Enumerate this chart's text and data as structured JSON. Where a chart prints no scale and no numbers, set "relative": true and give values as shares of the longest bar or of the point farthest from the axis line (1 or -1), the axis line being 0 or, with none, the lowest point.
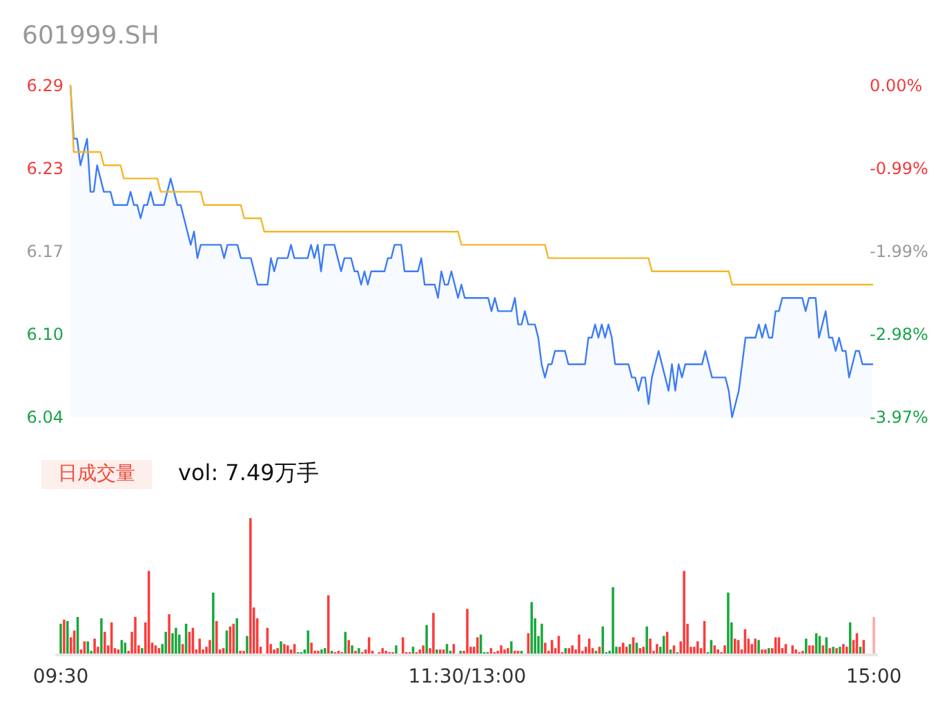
{
  "chart_data": [
    {
      "type": "area",
      "title": "601999.SH",
      "ylim": [
        6.04,
        6.29
      ],
      "yticks": [
        {
          "value": 6.04,
          "label": "6.04"
        },
        {
          "value": 6.1025,
          "label": "6.10"
        },
        {
          "value": 6.165,
          "label": "6.17"
        },
        {
          "value": 6.2275,
          "label": "6.23"
        },
        {
          "value": 6.29,
          "label": "6.29"
        }
      ],
      "y2lim": [
        -3.97,
        0
      ],
      "y2ticks": [
        {
          "value": -3.97,
          "label": "-3.97%"
        },
        {
          "value": -2.9775,
          "label": "-2.98%"
        },
        {
          "value": -1.985,
          "label": "-1.99%"
        },
        {
          "value": -0.9925,
          "label": "-0.99%"
        },
        {
          "value": 0,
          "label": "0.00%"
        }
      ],
      "tick_labels": "y",
      "categories": [
        null,
        null,
        null,
        null,
        null,
        null,
        null,
        null,
        null,
        null,
        null,
        null,
        null,
        null,
        null,
        null,
        null,
        null,
        null,
        null,
        null,
        null,
        null,
        null,
        null,
        null,
        null,
        null,
        null,
        null,
        null,
        null,
        null,
        null,
        null,
        null,
        null,
        null,
        null,
        null,
        null,
        null,
        null,
        null,
        null,
        null,
        null,
        null,
        null,
        null,
        null,
        null,
        null,
        null,
        null,
        null,
        null,
        null,
        null,
        null,
        null,
        null,
        null,
        null,
        null,
        null,
        null,
        null,
        null,
        null,
        null,
        null,
        null,
        null,
        null,
        null,
        null,
        null,
        null,
        null,
        null,
        null,
        null,
        null,
        null,
        null,
        null,
        null,
        null,
        null,
        null,
        null,
        null,
        null,
        null,
        null,
        null,
        null,
        null,
        null,
        null,
        null,
        null,
        null,
        null,
        null,
        null,
        null,
        null,
        null,
        null,
        null,
        null,
        null,
        null,
        null,
        null,
        null,
        null,
        null,
        null,
        null,
        null,
        null,
        null,
        null,
        null,
        null,
        null,
        null,
        null,
        null,
        null,
        null,
        null,
        null,
        null,
        null,
        null,
        null,
        null,
        null,
        null,
        null,
        null,
        null,
        null,
        null,
        null,
        null,
        null,
        null,
        null,
        null,
        null,
        null,
        null,
        null,
        null,
        null,
        null,
        null,
        null,
        null,
        null,
        null,
        null,
        null,
        null,
        null,
        null,
        null,
        null,
        null,
        null,
        null,
        null,
        null,
        null,
        null,
        null,
        null,
        null,
        null,
        null,
        null,
        null,
        null,
        null,
        null,
        null,
        null,
        null,
        null,
        null,
        null,
        null,
        null,
        null,
        null,
        null,
        null,
        null,
        null,
        null,
        null,
        null,
        null,
        null,
        null,
        null,
        null,
        null,
        null,
        null,
        null,
        null,
        null,
        null,
        null,
        null,
        null,
        null,
        null,
        null,
        null,
        null,
        null,
        null,
        null,
        null,
        null,
        null,
        null,
        null,
        null,
        null,
        null,
        null,
        null,
        null
      ],
      "series": [
        {
          "color": "#3d7cf5",
          "values": [
            6.29,
            6.25,
            6.25,
            6.23,
            6.24,
            6.25,
            6.21,
            6.21,
            6.23,
            6.22,
            6.21,
            6.21,
            6.21,
            6.2,
            6.2,
            6.2,
            6.2,
            6.2,
            6.21,
            6.2,
            6.2,
            6.19,
            6.2,
            6.2,
            6.21,
            6.2,
            6.2,
            6.2,
            6.2,
            6.21,
            6.22,
            6.21,
            6.2,
            6.2,
            6.19,
            6.18,
            6.17,
            6.18,
            6.16,
            6.17,
            6.17,
            6.17,
            6.17,
            6.17,
            6.17,
            6.17,
            6.16,
            6.17,
            6.17,
            6.17,
            6.17,
            6.16,
            6.16,
            6.16,
            6.16,
            6.15,
            6.14,
            6.14,
            6.14,
            6.14,
            6.16,
            6.15,
            6.16,
            6.16,
            6.16,
            6.16,
            6.17,
            6.16,
            6.16,
            6.16,
            6.16,
            6.16,
            6.17,
            6.16,
            6.17,
            6.15,
            6.17,
            6.17,
            6.17,
            6.17,
            6.16,
            6.15,
            6.16,
            6.16,
            6.16,
            6.15,
            6.15,
            6.14,
            6.15,
            6.14,
            6.15,
            6.15,
            6.15,
            6.15,
            6.15,
            6.16,
            6.16,
            6.17,
            6.17,
            6.17,
            6.15,
            6.15,
            6.15,
            6.15,
            6.15,
            6.16,
            6.14,
            6.14,
            6.14,
            6.14,
            6.13,
            6.15,
            6.14,
            6.14,
            6.15,
            6.14,
            6.13,
            6.14,
            6.13,
            6.13,
            6.13,
            6.13,
            6.13,
            6.13,
            6.13,
            6.13,
            6.12,
            6.13,
            6.12,
            6.12,
            6.12,
            6.12,
            6.12,
            6.13,
            6.11,
            6.11,
            6.12,
            6.11,
            6.11,
            6.11,
            6.1,
            6.08,
            6.07,
            6.08,
            6.08,
            6.09,
            6.09,
            6.09,
            6.09,
            6.08,
            6.08,
            6.08,
            6.08,
            6.08,
            6.08,
            6.1,
            6.1,
            6.11,
            6.1,
            6.11,
            6.1,
            6.11,
            6.1,
            6.08,
            6.08,
            6.08,
            6.08,
            6.08,
            6.07,
            6.07,
            6.06,
            6.07,
            6.07,
            6.05,
            6.07,
            6.08,
            6.09,
            6.08,
            6.07,
            6.06,
            6.08,
            6.06,
            6.08,
            6.07,
            6.08,
            6.08,
            6.08,
            6.08,
            6.08,
            6.08,
            6.09,
            6.08,
            6.07,
            6.07,
            6.07,
            6.07,
            6.07,
            6.06,
            6.04,
            6.05,
            6.06,
            6.08,
            6.1,
            6.1,
            6.1,
            6.1,
            6.11,
            6.1,
            6.11,
            6.1,
            6.1,
            6.12,
            6.12,
            6.13,
            6.13,
            6.13,
            6.13,
            6.13,
            6.13,
            6.13,
            6.12,
            6.13,
            6.13,
            6.13,
            6.1,
            6.11,
            6.12,
            6.1,
            6.1,
            6.09,
            6.1,
            6.09,
            6.09,
            6.07,
            6.08,
            6.09,
            6.09,
            6.08,
            6.08,
            6.08,
            6.08
          ]
        },
        {
          "type": "line",
          "color": "#f5b62a",
          "values": [
            6.29,
            6.24,
            6.24,
            6.24,
            6.24,
            6.24,
            6.24,
            6.24,
            6.24,
            6.24,
            6.23,
            6.23,
            6.23,
            6.23,
            6.23,
            6.23,
            6.22,
            6.22,
            6.22,
            6.22,
            6.22,
            6.22,
            6.22,
            6.22,
            6.22,
            6.22,
            6.22,
            6.21,
            6.21,
            6.21,
            6.21,
            6.21,
            6.21,
            6.21,
            6.21,
            6.21,
            6.21,
            6.21,
            6.21,
            6.21,
            6.2,
            6.2,
            6.2,
            6.2,
            6.2,
            6.2,
            6.2,
            6.2,
            6.2,
            6.2,
            6.2,
            6.2,
            6.19,
            6.19,
            6.19,
            6.19,
            6.19,
            6.19,
            6.18,
            6.18,
            6.18,
            6.18,
            6.18,
            6.18,
            6.18,
            6.18,
            6.18,
            6.18,
            6.18,
            6.18,
            6.18,
            6.18,
            6.18,
            6.18,
            6.18,
            6.18,
            6.18,
            6.18,
            6.18,
            6.18,
            6.18,
            6.18,
            6.18,
            6.18,
            6.18,
            6.18,
            6.18,
            6.18,
            6.18,
            6.18,
            6.18,
            6.18,
            6.18,
            6.18,
            6.18,
            6.18,
            6.18,
            6.18,
            6.18,
            6.18,
            6.18,
            6.18,
            6.18,
            6.18,
            6.18,
            6.18,
            6.18,
            6.18,
            6.18,
            6.18,
            6.18,
            6.18,
            6.18,
            6.18,
            6.18,
            6.18,
            6.18,
            6.17,
            6.17,
            6.17,
            6.17,
            6.17,
            6.17,
            6.17,
            6.17,
            6.17,
            6.17,
            6.17,
            6.17,
            6.17,
            6.17,
            6.17,
            6.17,
            6.17,
            6.17,
            6.17,
            6.17,
            6.17,
            6.17,
            6.17,
            6.17,
            6.17,
            6.17,
            6.16,
            6.16,
            6.16,
            6.16,
            6.16,
            6.16,
            6.16,
            6.16,
            6.16,
            6.16,
            6.16,
            6.16,
            6.16,
            6.16,
            6.16,
            6.16,
            6.16,
            6.16,
            6.16,
            6.16,
            6.16,
            6.16,
            6.16,
            6.16,
            6.16,
            6.16,
            6.16,
            6.16,
            6.16,
            6.16,
            6.16,
            6.15,
            6.15,
            6.15,
            6.15,
            6.15,
            6.15,
            6.15,
            6.15,
            6.15,
            6.15,
            6.15,
            6.15,
            6.15,
            6.15,
            6.15,
            6.15,
            6.15,
            6.15,
            6.15,
            6.15,
            6.15,
            6.15,
            6.15,
            6.15,
            6.14,
            6.14,
            6.14,
            6.14,
            6.14,
            6.14,
            6.14,
            6.14,
            6.14,
            6.14,
            6.14,
            6.14,
            6.14,
            6.14,
            6.14,
            6.14,
            6.14,
            6.14,
            6.14,
            6.14,
            6.14,
            6.14,
            6.14,
            6.14,
            6.14,
            6.14,
            6.14,
            6.14,
            6.14,
            6.14,
            6.14,
            6.14,
            6.14,
            6.14,
            6.14,
            6.14,
            6.14,
            6.14,
            6.14,
            6.14,
            6.14,
            6.14,
            6.14
          ]
        }
      ]
    },
    {
      "type": "bar",
      "title": "日成交量",
      "annotations": [
        "vol: 7.49万手"
      ],
      "relative": true,
      "tick_labels": "x",
      "categories": [
        "09:30",
        null,
        null,
        null,
        null,
        null,
        null,
        null,
        null,
        null,
        null,
        null,
        null,
        null,
        null,
        null,
        null,
        null,
        null,
        null,
        null,
        null,
        null,
        null,
        null,
        null,
        null,
        null,
        null,
        null,
        null,
        null,
        null,
        null,
        null,
        null,
        null,
        null,
        null,
        null,
        null,
        null,
        null,
        null,
        null,
        null,
        null,
        null,
        null,
        null,
        null,
        null,
        null,
        null,
        null,
        null,
        null,
        null,
        null,
        null,
        null,
        null,
        null,
        null,
        null,
        null,
        null,
        null,
        null,
        null,
        null,
        null,
        null,
        null,
        null,
        null,
        null,
        null,
        null,
        null,
        null,
        null,
        null,
        null,
        null,
        null,
        null,
        null,
        null,
        null,
        null,
        null,
        null,
        null,
        null,
        null,
        null,
        null,
        null,
        null,
        null,
        null,
        null,
        null,
        null,
        null,
        null,
        null,
        null,
        null,
        null,
        null,
        null,
        null,
        null,
        null,
        null,
        null,
        null,
        null,
        "11:30/13:00",
        null,
        null,
        null,
        null,
        null,
        null,
        null,
        null,
        null,
        null,
        null,
        null,
        null,
        null,
        null,
        null,
        null,
        null,
        null,
        null,
        null,
        null,
        null,
        null,
        null,
        null,
        null,
        null,
        null,
        null,
        null,
        null,
        null,
        null,
        null,
        null,
        null,
        null,
        null,
        null,
        null,
        null,
        null,
        null,
        null,
        null,
        null,
        null,
        null,
        null,
        null,
        null,
        null,
        null,
        null,
        null,
        null,
        null,
        null,
        null,
        null,
        null,
        null,
        null,
        null,
        null,
        null,
        null,
        null,
        null,
        null,
        null,
        null,
        null,
        null,
        null,
        null,
        null,
        null,
        null,
        null,
        null,
        null,
        null,
        null,
        null,
        null,
        null,
        null,
        null,
        null,
        null,
        null,
        null,
        null,
        null,
        null,
        null,
        null,
        null,
        null,
        null,
        null,
        null,
        null,
        null,
        null,
        null,
        null,
        null,
        null,
        null,
        null,
        null,
        null,
        null,
        null,
        null,
        null,
        "15:00"
      ],
      "values": [
        0.22,
        0.25,
        0.24,
        0.12,
        0.17,
        0.27,
        0.03,
        0.09,
        0.09,
        0.02,
        0.11,
        0.05,
        0.26,
        0.16,
        0.06,
        0.23,
        0.04,
        0.03,
        0.1,
        0.08,
        0.02,
        0.16,
        0.27,
        0.06,
        0.04,
        0.23,
        0.61,
        0.08,
        0.06,
        0.04,
        0.07,
        0.16,
        0.29,
        0.15,
        0.19,
        0.14,
        0.07,
        0.22,
        0.16,
        0.19,
        0.03,
        0.11,
        0.03,
        0.05,
        0.1,
        0.45,
        0.24,
        0.03,
        0.04,
        0.17,
        0.2,
        0.22,
        0.26,
        0.02,
        0.02,
        0.13,
        1.0,
        0.34,
        0.26,
        0.05,
        null,
        0.19,
        0.07,
        0.03,
        0.04,
        0.09,
        0.07,
        0.06,
        0.03,
        0.07,
        0.01,
        0.01,
        0.03,
        0.17,
        0.08,
        0.02,
        0.02,
        0.03,
        0.04,
        0.43,
        0.02,
        0.01,
        0.02,
        0.01,
        0.16,
        0.1,
        0.06,
        0.02,
        0.04,
        0.01,
        0.03,
        0.12,
        0.02,
        null,
        0.01,
        0.04,
        0.02,
        0.01,
        0.01,
        0.06,
        null,
        0.12,
        0.01,
        0.01,
        0.05,
        0.01,
        0.03,
        0.06,
        0.21,
        0.04,
        0.3,
        0.03,
        0.03,
        0.03,
        0.07,
        0.02,
        0.07,
        null,
        0.02,
        0.02,
        0.33,
        0.05,
        0.05,
        0.12,
        0.14,
        0.01,
        0.01,
        0.04,
        0.01,
        0.02,
        0.06,
        0.03,
        0.04,
        0.09,
        0.02,
        0.02,
        0.02,
        null,
        0.15,
        0.38,
        0.26,
        0.13,
        0.22,
        0.08,
        0.02,
        0.1,
        0.04,
        0.13,
        0.01,
        0.04,
        0.04,
        0.06,
        0.03,
        0.14,
        0.02,
        0.05,
        0.11,
        0.04,
        0.02,
        0.05,
        0.2,
        0.01,
        0.02,
        0.49,
        0.05,
        0.05,
        0.08,
        0.05,
        0.07,
        0.12,
        0.08,
        0.04,
        0.05,
        0.2,
        0.11,
        0.02,
        0.07,
        0.05,
        0.13,
        0.16,
        0.03,
        0.06,
        0.01,
        0.09,
        0.61,
        0.22,
        0.05,
        0.05,
        0.09,
        0.04,
        0.24,
        0.01,
        0.1,
        0.06,
        0.03,
        0.01,
        0.06,
        0.45,
        0.23,
        0.11,
        0.1,
        0.03,
        0.18,
        0.11,
        0.07,
        0.11,
        0.1,
        0.03,
        0.03,
        0.04,
        0.04,
        0.12,
        0.12,
        0.04,
        0.07,
        null,
        0.06,
        0.03,
        0.01,
        0.02,
        0.11,
        0.06,
        0.06,
        0.15,
        0.13,
        0.06,
        0.12,
        0.04,
        0.05,
        0.04,
        0.05,
        0.07,
        0.05,
        0.23,
        0.1,
        0.15,
        0.05,
        0.1,
        null,
        null,
        0.27
      ],
      "colors": [
        "#19a83c",
        "#fc3b3b",
        "#19a83c",
        "#fc3b3b",
        "#fc3b3b",
        "#19a83c",
        "#fc3b3b",
        "#fc3b3b",
        "#19a83c",
        "#19a83c",
        "#fc3b3b",
        "#fc3b3b",
        "#19a83c",
        "#fc3b3b",
        "#fc3b3b",
        "#fc3b3b",
        "#fc3b3b",
        "#fc3b3b",
        "#19a83c",
        "#19a83c",
        "#fc3b3b",
        "#fc3b3b",
        "#fc3b3b",
        "#fc3b3b",
        "#19a83c",
        "#fc3b3b",
        "#fc3b3b",
        "#fc3b3b",
        "#fc3b3b",
        "#fc3b3b",
        "#19a83c",
        "#19a83c",
        "#fc3b3b",
        "#19a83c",
        "#19a83c",
        "#19a83c",
        "#fc3b3b",
        "#19a83c",
        "#fc3b3b",
        "#fc3b3b",
        "#fc3b3b",
        "#fc3b3b",
        "#fc3b3b",
        "#fc3b3b",
        "#fc3b3b",
        "#19a83c",
        "#fc3b3b",
        "#fc3b3b",
        "#fc3b3b",
        "#19a83c",
        "#fc3b3b",
        "#fc3b3b",
        "#19a83c",
        "#fc3b3b",
        "#fc3b3b",
        "#19a83c",
        "#fc3b3b",
        "#fc3b3b",
        "#fc3b3b",
        "#fc3b3b",
        null,
        "#fc3b3b",
        "#fc3b3b",
        "#fc3b3b",
        "#fc3b3b",
        "#19a83c",
        "#fc3b3b",
        "#fc3b3b",
        "#fc3b3b",
        "#fc3b3b",
        "#19a83c",
        "#19a83c",
        "#19a83c",
        "#19a83c",
        "#fc3b3b",
        "#fc3b3b",
        "#fc3b3b",
        "#19a83c",
        "#19a83c",
        "#fc3b3b",
        "#19a83c",
        "#fc3b3b",
        "#fc3b3b",
        "#fc3b3b",
        "#19a83c",
        "#fc3b3b",
        "#19a83c",
        "#fc3b3b",
        "#19a83c",
        "#fc3b3b",
        "#fc3b3b",
        "#fc3b3b",
        "#fc3b3b",
        null,
        "#fc3b3b",
        "#fc3b3b",
        "#fc3b3b",
        "#fc3b3b",
        "#fc3b3b",
        "#19a83c",
        null,
        "#fc3b3b",
        "#fc3b3b",
        "#fc3b3b",
        "#19a83c",
        "#fc3b3b",
        "#fc3b3b",
        "#fc3b3b",
        "#19a83c",
        "#fc3b3b",
        "#fc3b3b",
        "#19a83c",
        "#fc3b3b",
        "#fc3b3b",
        "#19a83c",
        "#19a83c",
        "#fc3b3b",
        null,
        "#19a83c",
        "#fc3b3b",
        "#fc3b3b",
        "#fc3b3b",
        "#fc3b3b",
        "#fc3b3b",
        "#19a83c",
        "#19a83c",
        "#19a83c",
        "#fc3b3b",
        "#fc3b3b",
        "#fc3b3b",
        "#fc3b3b",
        "#fc3b3b",
        "#fc3b3b",
        "#19a83c",
        "#fc3b3b",
        "#fc3b3b",
        "#19a83c",
        null,
        "#fc3b3b",
        "#19a83c",
        "#19a83c",
        "#19a83c",
        "#19a83c",
        "#fc3b3b",
        "#fc3b3b",
        "#fc3b3b",
        "#fc3b3b",
        "#fc3b3b",
        "#fc3b3b",
        "#19a83c",
        "#fc3b3b",
        "#fc3b3b",
        "#fc3b3b",
        "#fc3b3b",
        "#fc3b3b",
        "#fc3b3b",
        "#fc3b3b",
        "#fc3b3b",
        "#19a83c",
        "#fc3b3b",
        "#19a83c",
        "#19a83c",
        "#19a83c",
        "#19a83c",
        "#19a83c",
        "#fc3b3b",
        "#fc3b3b",
        "#fc3b3b",
        "#19a83c",
        "#fc3b3b",
        "#19a83c",
        "#fc3b3b",
        "#fc3b3b",
        "#19a83c",
        "#fc3b3b",
        "#fc3b3b",
        "#fc3b3b",
        "#19a83c",
        "#19a83c",
        "#fc3b3b",
        "#19a83c",
        "#fc3b3b",
        "#19a83c",
        "#fc3b3b",
        "#fc3b3b",
        "#fc3b3b",
        "#fc3b3b",
        "#fc3b3b",
        "#fc3b3b",
        "#fc3b3b",
        "#fc3b3b",
        "#19a83c",
        "#19a83c",
        "#fc3b3b",
        "#fc3b3b",
        "#fc3b3b",
        "#fc3b3b",
        "#19a83c",
        "#19a83c",
        "#fc3b3b",
        "#fc3b3b",
        "#fc3b3b",
        "#fc3b3b",
        "#fc3b3b",
        "#fc3b3b",
        "#fc3b3b",
        "#19a83c",
        "#fc3b3b",
        "#fc3b3b",
        "#19a83c",
        "#fc3b3b",
        "#fc3b3b",
        "#fc3b3b",
        "#fc3b3b",
        "#fc3b3b",
        null,
        "#fc3b3b",
        "#fc3b3b",
        "#fc3b3b",
        "#fc3b3b",
        "#19a83c",
        "#fc3b3b",
        "#fc3b3b",
        "#19a83c",
        "#19a83c",
        "#fc3b3b",
        "#19a83c",
        "#fc3b3b",
        "#19a83c",
        "#fc3b3b",
        "#19a83c",
        "#fc3b3b",
        "#fc3b3b",
        "#19a83c",
        "#fc3b3b",
        "#fc3b3b",
        "#19a83c",
        "#fc3b3b",
        null,
        null,
        "#ffa8a8"
      ]
    }
  ]
}
